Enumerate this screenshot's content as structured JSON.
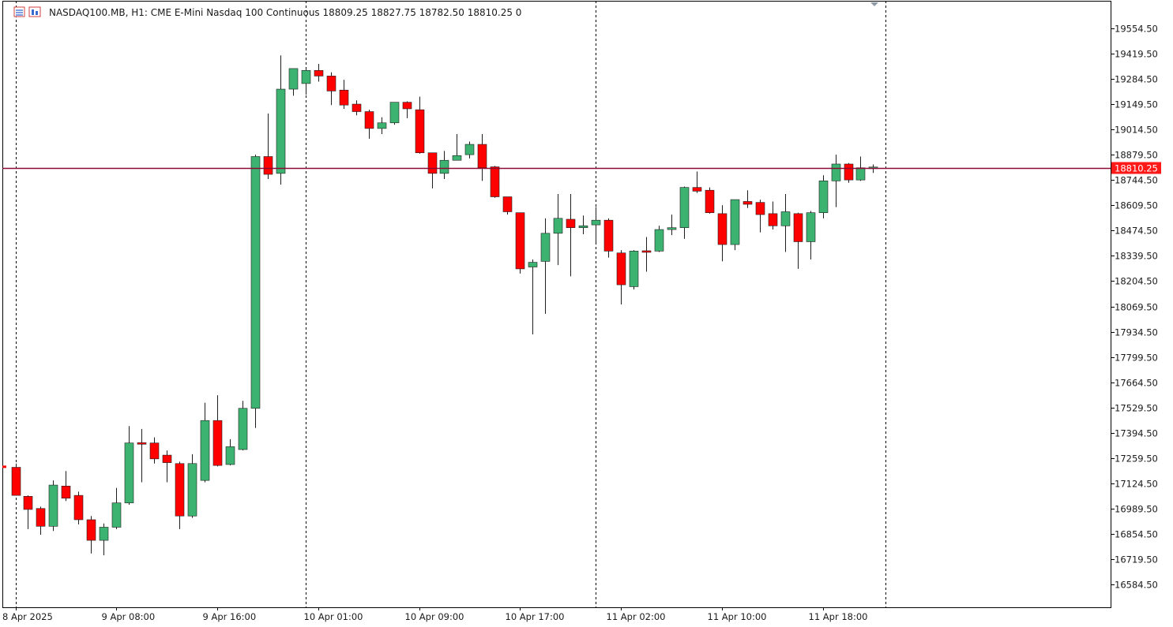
{
  "header": {
    "symbol_line": "NASDAQ100.MB, H1:  CME E-Mini Nasdaq 100 Continuous  18809.25 18827.75 18782.50 18810.25  0",
    "icons": [
      "symbol-menu-icon",
      "chart-window-icon"
    ]
  },
  "colors": {
    "bull": "#3cb371",
    "bear": "#ff0000",
    "price_line": "#8b0a35",
    "price_tag_bg": "#ff1a1a",
    "grid_separator": "#000000",
    "axis": "#000000",
    "background": "#ffffff"
  },
  "chart_data": {
    "type": "candlestick",
    "symbol": "NASDAQ100.MB",
    "timeframe": "H1",
    "description": "CME E-Mini Nasdaq 100 Continuous",
    "last_bar": {
      "open": 18809.25,
      "high": 18827.75,
      "low": 18782.5,
      "close": 18810.25,
      "volume": 0
    },
    "current_price_label": "18810.25",
    "current_price": 18810.25,
    "ylim": [
      16450,
      19690
    ],
    "y_ticks": [
      "19554.50",
      "19419.50",
      "19284.50",
      "19149.50",
      "19014.50",
      "18879.50",
      "18744.50",
      "18609.50",
      "18474.50",
      "18339.50",
      "18204.50",
      "18069.50",
      "17934.50",
      "17799.50",
      "17664.50",
      "17529.50",
      "17394.50",
      "17259.50",
      "17124.50",
      "16989.50",
      "16854.50",
      "16719.50",
      "16584.50"
    ],
    "x_ticks": [
      {
        "label": "8 Apr 2025",
        "bar": 0
      },
      {
        "label": "9 Apr 08:00",
        "bar": 8
      },
      {
        "label": "9 Apr 16:00",
        "bar": 16
      },
      {
        "label": "10 Apr 01:00",
        "bar": 24
      },
      {
        "label": "10 Apr 09:00",
        "bar": 32
      },
      {
        "label": "10 Apr 17:00",
        "bar": 40
      },
      {
        "label": "11 Apr 02:00",
        "bar": 48
      },
      {
        "label": "11 Apr 10:00",
        "bar": 56
      },
      {
        "label": "11 Apr 18:00",
        "bar": 64
      }
    ],
    "separator_bars": [
      0,
      23,
      46,
      69
    ],
    "candles": [
      {
        "o": 17210,
        "h": 17230,
        "l": 17070,
        "c": 17060
      },
      {
        "o": 17055,
        "h": 17060,
        "l": 16880,
        "c": 16985
      },
      {
        "o": 16990,
        "h": 17000,
        "l": 16850,
        "c": 16895
      },
      {
        "o": 16895,
        "h": 17140,
        "l": 16870,
        "c": 17115
      },
      {
        "o": 17110,
        "h": 17190,
        "l": 17030,
        "c": 17045
      },
      {
        "o": 17060,
        "h": 17080,
        "l": 16905,
        "c": 16930
      },
      {
        "o": 16930,
        "h": 16950,
        "l": 16750,
        "c": 16820
      },
      {
        "o": 16820,
        "h": 16910,
        "l": 16740,
        "c": 16890
      },
      {
        "o": 16890,
        "h": 17100,
        "l": 16880,
        "c": 17020
      },
      {
        "o": 17020,
        "h": 17430,
        "l": 17010,
        "c": 17340
      },
      {
        "o": 17340,
        "h": 17415,
        "l": 17130,
        "c": 17335
      },
      {
        "o": 17340,
        "h": 17370,
        "l": 17230,
        "c": 17255
      },
      {
        "o": 17275,
        "h": 17300,
        "l": 17130,
        "c": 17235
      },
      {
        "o": 17230,
        "h": 17240,
        "l": 16880,
        "c": 16950
      },
      {
        "o": 16950,
        "h": 17280,
        "l": 16940,
        "c": 17230
      },
      {
        "o": 17140,
        "h": 17555,
        "l": 17130,
        "c": 17460
      },
      {
        "o": 17460,
        "h": 17595,
        "l": 17215,
        "c": 17220
      },
      {
        "o": 17225,
        "h": 17360,
        "l": 17220,
        "c": 17320
      },
      {
        "o": 17305,
        "h": 17565,
        "l": 17300,
        "c": 17525
      },
      {
        "o": 17525,
        "h": 18880,
        "l": 17420,
        "c": 18870
      },
      {
        "o": 18870,
        "h": 19100,
        "l": 18750,
        "c": 18775
      },
      {
        "o": 18780,
        "h": 19410,
        "l": 18720,
        "c": 19230
      },
      {
        "o": 19230,
        "h": 19340,
        "l": 19195,
        "c": 19340
      },
      {
        "o": 19260,
        "h": 19340,
        "l": 19200,
        "c": 19330
      },
      {
        "o": 19330,
        "h": 19365,
        "l": 19270,
        "c": 19300
      },
      {
        "o": 19300,
        "h": 19320,
        "l": 19145,
        "c": 19220
      },
      {
        "o": 19225,
        "h": 19280,
        "l": 19125,
        "c": 19145
      },
      {
        "o": 19150,
        "h": 19170,
        "l": 19090,
        "c": 19110
      },
      {
        "o": 19110,
        "h": 19120,
        "l": 18965,
        "c": 19020
      },
      {
        "o": 19020,
        "h": 19080,
        "l": 18990,
        "c": 19050
      },
      {
        "o": 19050,
        "h": 19160,
        "l": 19040,
        "c": 19160
      },
      {
        "o": 19160,
        "h": 19165,
        "l": 19075,
        "c": 19125
      },
      {
        "o": 19120,
        "h": 19190,
        "l": 18885,
        "c": 18890
      },
      {
        "o": 18890,
        "h": 18890,
        "l": 18700,
        "c": 18780
      },
      {
        "o": 18780,
        "h": 18900,
        "l": 18750,
        "c": 18850
      },
      {
        "o": 18850,
        "h": 18990,
        "l": 18850,
        "c": 18875
      },
      {
        "o": 18880,
        "h": 18950,
        "l": 18860,
        "c": 18935
      },
      {
        "o": 18935,
        "h": 18990,
        "l": 18740,
        "c": 18810
      },
      {
        "o": 18815,
        "h": 18820,
        "l": 18650,
        "c": 18655
      },
      {
        "o": 18655,
        "h": 18655,
        "l": 18560,
        "c": 18575
      },
      {
        "o": 18570,
        "h": 18570,
        "l": 18245,
        "c": 18270
      },
      {
        "o": 18280,
        "h": 18320,
        "l": 17920,
        "c": 18305
      },
      {
        "o": 18310,
        "h": 18540,
        "l": 18030,
        "c": 18460
      },
      {
        "o": 18460,
        "h": 18670,
        "l": 18290,
        "c": 18540
      },
      {
        "o": 18535,
        "h": 18670,
        "l": 18230,
        "c": 18490
      },
      {
        "o": 18490,
        "h": 18555,
        "l": 18455,
        "c": 18500
      },
      {
        "o": 18505,
        "h": 18600,
        "l": 18410,
        "c": 18530
      },
      {
        "o": 18530,
        "h": 18540,
        "l": 18330,
        "c": 18365
      },
      {
        "o": 18355,
        "h": 18370,
        "l": 18080,
        "c": 18185
      },
      {
        "o": 18175,
        "h": 18370,
        "l": 18160,
        "c": 18365
      },
      {
        "o": 18365,
        "h": 18440,
        "l": 18255,
        "c": 18360
      },
      {
        "o": 18365,
        "h": 18500,
        "l": 18360,
        "c": 18480
      },
      {
        "o": 18480,
        "h": 18560,
        "l": 18450,
        "c": 18490
      },
      {
        "o": 18490,
        "h": 18710,
        "l": 18430,
        "c": 18705
      },
      {
        "o": 18705,
        "h": 18790,
        "l": 18675,
        "c": 18685
      },
      {
        "o": 18690,
        "h": 18705,
        "l": 18565,
        "c": 18570
      },
      {
        "o": 18565,
        "h": 18610,
        "l": 18310,
        "c": 18400
      },
      {
        "o": 18400,
        "h": 18630,
        "l": 18370,
        "c": 18640
      },
      {
        "o": 18630,
        "h": 18690,
        "l": 18595,
        "c": 18615
      },
      {
        "o": 18625,
        "h": 18640,
        "l": 18465,
        "c": 18560
      },
      {
        "o": 18565,
        "h": 18630,
        "l": 18480,
        "c": 18500
      },
      {
        "o": 18500,
        "h": 18670,
        "l": 18360,
        "c": 18575
      },
      {
        "o": 18565,
        "h": 18570,
        "l": 18270,
        "c": 18415
      },
      {
        "o": 18415,
        "h": 18580,
        "l": 18320,
        "c": 18570
      },
      {
        "o": 18570,
        "h": 18770,
        "l": 18540,
        "c": 18740
      },
      {
        "o": 18740,
        "h": 18880,
        "l": 18600,
        "c": 18830
      },
      {
        "o": 18830,
        "h": 18835,
        "l": 18730,
        "c": 18745
      },
      {
        "o": 18745,
        "h": 18870,
        "l": 18740,
        "c": 18810
      },
      {
        "o": 18809.25,
        "h": 18827.75,
        "l": 18782.5,
        "c": 18810.25
      }
    ]
  }
}
